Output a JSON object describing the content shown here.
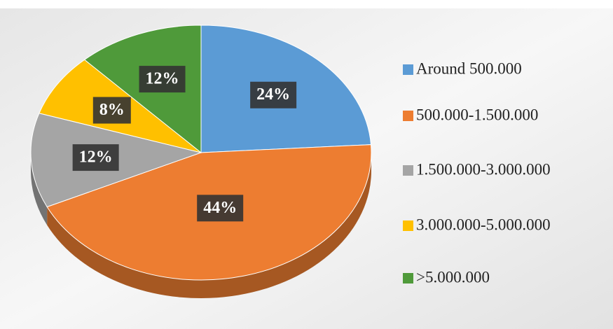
{
  "chart_data": {
    "type": "pie",
    "categories": [
      "Around 500.000",
      "500.000-1.500.000",
      "1.500.000-3.000.000",
      "3.000.000-5.000.000",
      ">5.000.000"
    ],
    "values": [
      24,
      44,
      12,
      8,
      12
    ],
    "value_labels": [
      "24%",
      "44%",
      "12%",
      "8%",
      "12%"
    ],
    "colors": [
      "#5b9bd5",
      "#ed7d31",
      "#a5a5a5",
      "#ffc000",
      "#4f9a3a"
    ],
    "legend": "right"
  }
}
